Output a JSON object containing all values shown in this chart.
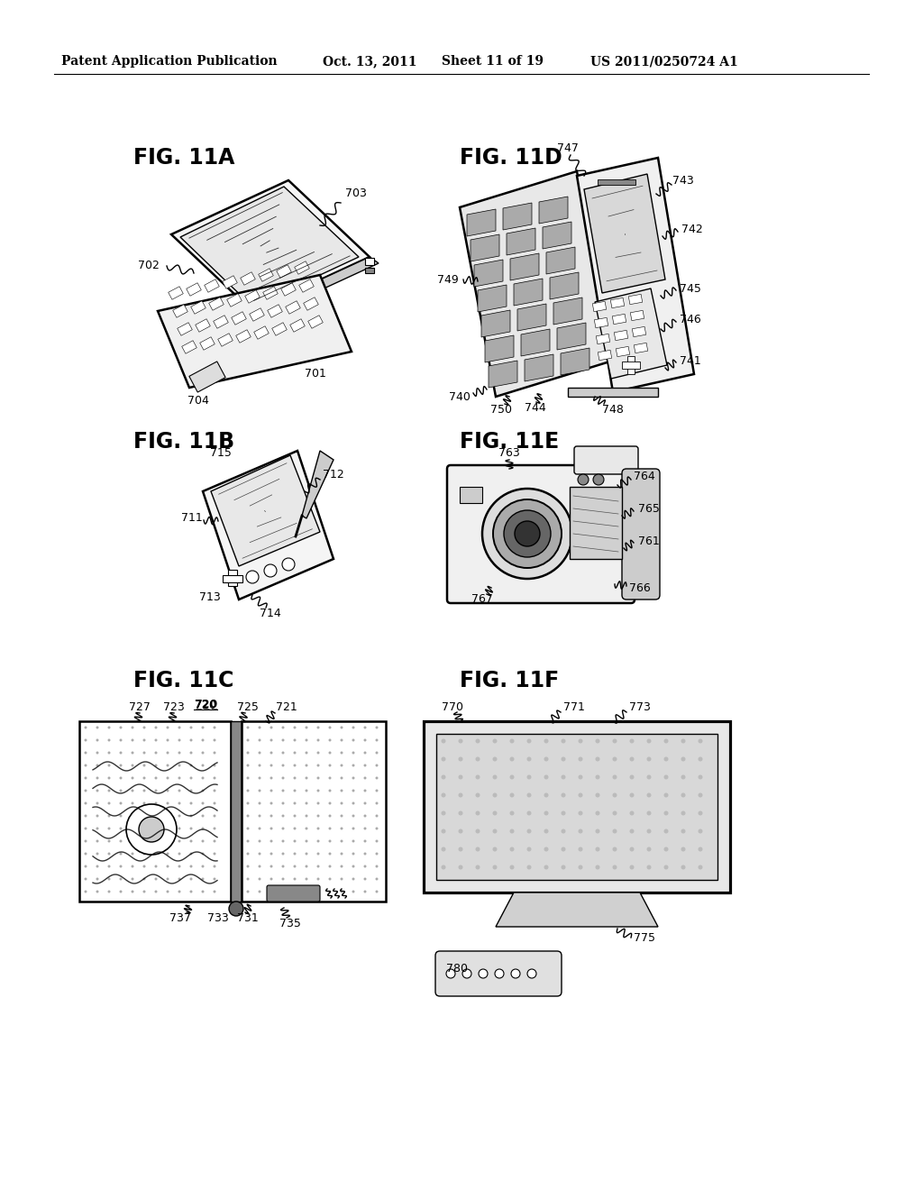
{
  "bg_color": "#ffffff",
  "header_text": "Patent Application Publication",
  "header_date": "Oct. 13, 2011",
  "header_sheet": "Sheet 11 of 19",
  "header_patent": "US 2011/0250724 A1"
}
